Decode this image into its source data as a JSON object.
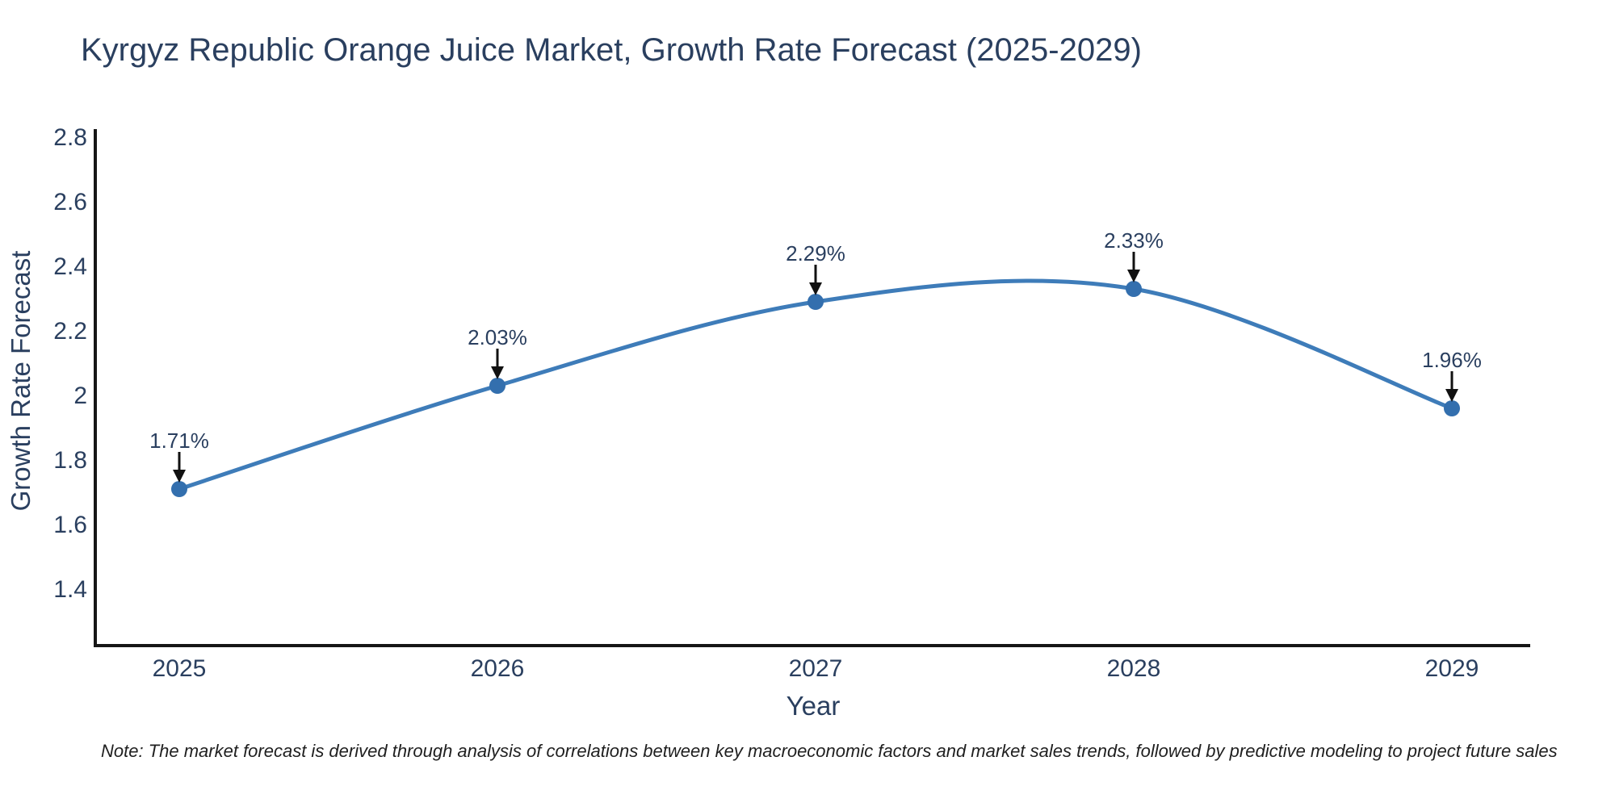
{
  "title": "Kyrgyz Republic Orange Juice Market, Growth Rate Forecast (2025-2029)",
  "note": "Note: The market forecast is derived through analysis of correlations between key macroeconomic factors and market sales trends, followed by predictive modeling to project future sales",
  "colors": {
    "line": "#3e7cb9",
    "marker": "#336fae",
    "text": "#2a3f5f",
    "arrow": "#111111",
    "axis": "#161616",
    "note_text": "#1f1f1f",
    "background": "#ffffff"
  },
  "chart_data": {
    "type": "line",
    "title": "Kyrgyz Republic Orange Juice Market, Growth Rate Forecast (2025-2029)",
    "x": [
      2025,
      2026,
      2027,
      2028,
      2029
    ],
    "series": [
      {
        "name": "Growth Rate Forecast",
        "values": [
          1.71,
          2.03,
          2.29,
          2.33,
          1.96
        ]
      }
    ],
    "point_labels": [
      "1.71%",
      "2.03%",
      "2.29%",
      "2.33%",
      "1.96%"
    ],
    "xlabel": "Year",
    "ylabel": "Growth Rate Forecast",
    "yticks": [
      2.8,
      2.6,
      2.4,
      2.2,
      2,
      1.8,
      1.6,
      1.4
    ],
    "ylim": [
      1.225,
      2.825
    ],
    "line_shape": "spline",
    "grid": false,
    "legend": "none"
  }
}
